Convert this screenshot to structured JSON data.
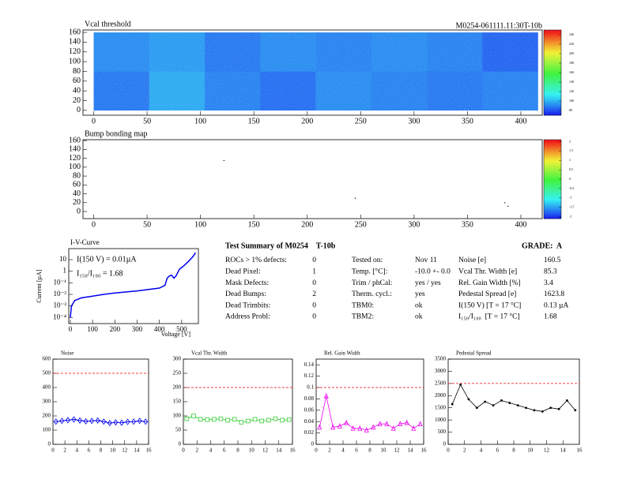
{
  "module_id": "M0254-061111.11:30T-10b",
  "chart_data": [
    {
      "type": "heatmap",
      "title": "Vcal threshold",
      "xlim": [
        -10,
        420
      ],
      "ylim": [
        -10,
        165
      ],
      "xticks": [
        0,
        50,
        100,
        150,
        200,
        250,
        300,
        350,
        400
      ],
      "yticks": [
        0,
        20,
        40,
        60,
        80,
        100,
        120,
        140,
        160
      ],
      "zlim": [
        70,
        250
      ],
      "zticks": [
        80,
        100,
        120,
        140,
        160,
        180,
        200,
        220,
        240
      ],
      "z": [
        [
          88,
          98,
          90,
          86,
          92,
          90,
          88,
          90
        ],
        [
          92,
          95,
          88,
          92,
          90,
          92,
          90,
          84
        ]
      ]
    },
    {
      "type": "scatter",
      "title": "Bump bonding map",
      "xlim": [
        -10,
        420
      ],
      "ylim": [
        -16,
        162
      ],
      "xticks": [
        0,
        50,
        100,
        150,
        200,
        250,
        300,
        350,
        400
      ],
      "yticks": [
        0,
        20,
        40,
        60,
        80,
        100,
        120,
        140,
        160
      ],
      "zlim": [
        -2.1,
        2.1
      ],
      "zticks": [
        -2,
        -1.5,
        -1,
        -0.5,
        0,
        0.5,
        1,
        1.5,
        2
      ],
      "x": [
        122,
        245,
        385,
        388
      ],
      "values": [
        115,
        30,
        20,
        12
      ],
      "color": "#000000"
    },
    {
      "type": "line",
      "title": "I-V-Curve",
      "xlabel": "Voltage [V]",
      "ylabel": "Current [µA]",
      "log_y": true,
      "color": "#0000ee",
      "xlim": [
        -7,
        575
      ],
      "ylim": [
        3e-05,
        90
      ],
      "xticks": [
        0,
        100,
        200,
        300,
        400,
        500
      ],
      "yticks": [
        {
          "value": 0.0001,
          "label": "10⁻⁴"
        },
        {
          "value": 0.001,
          "label": "10⁻³"
        },
        {
          "value": 0.01,
          "label": "10⁻²"
        },
        {
          "value": 0.1,
          "label": "10⁻¹"
        },
        1,
        10
      ],
      "annotations": [
        "I(150 V) = 0.01µA",
        "I₁₅₀/I₁₀₀ = 1.68"
      ],
      "x": [
        0,
        5,
        20,
        50,
        100,
        150,
        200,
        300,
        400,
        425,
        435,
        445,
        455,
        465,
        475,
        490,
        510,
        530,
        550,
        562
      ],
      "values": [
        0.0001,
        0.001,
        0.003,
        0.005,
        0.007,
        0.01,
        0.013,
        0.02,
        0.035,
        0.06,
        0.25,
        0.4,
        0.45,
        0.25,
        0.4,
        1.5,
        3,
        7,
        18,
        40
      ]
    },
    {
      "type": "line",
      "title": "Noise",
      "marker": "diamond",
      "color": "#0000ee",
      "threshold": 500,
      "xlim": [
        0,
        16
      ],
      "xticks": [
        0,
        2,
        4,
        6,
        8,
        10,
        12,
        14,
        16
      ],
      "ylim": [
        0,
        600
      ],
      "yticks": [
        0,
        100,
        200,
        300,
        400,
        500,
        600
      ],
      "values": [
        160,
        165,
        170,
        175,
        168,
        162,
        165,
        168,
        160,
        150,
        155,
        152,
        158,
        160,
        165,
        160
      ]
    },
    {
      "type": "line",
      "title": "Vcal Thr. Width",
      "marker": "square",
      "color": "#33cc33",
      "threshold": 200,
      "xlim": [
        0,
        16
      ],
      "xticks": [
        0,
        2,
        4,
        6,
        8,
        10,
        12,
        14,
        16
      ],
      "ylim": [
        0,
        300
      ],
      "yticks": [
        0,
        50,
        100,
        150,
        200,
        250,
        300
      ],
      "values": [
        90,
        100,
        88,
        87,
        88,
        90,
        85,
        88,
        78,
        82,
        88,
        82,
        85,
        90,
        85,
        87
      ]
    },
    {
      "type": "line",
      "title": "Rel. Gain Width",
      "marker": "triangle",
      "color": "#ee00ee",
      "threshold": 0.1,
      "xlim": [
        0,
        16
      ],
      "xticks": [
        0,
        2,
        4,
        6,
        8,
        10,
        12,
        14,
        16
      ],
      "ylim": [
        0,
        0.15
      ],
      "yticks": [
        0,
        0.02,
        0.04,
        0.06,
        0.08,
        0.1,
        0.12,
        0.14
      ],
      "values": [
        0.03,
        0.085,
        0.03,
        0.032,
        0.038,
        0.028,
        0.028,
        0.025,
        0.03,
        0.036,
        0.036,
        0.028,
        0.036,
        0.038,
        0.028,
        0.036
      ]
    },
    {
      "type": "line",
      "title": "Pedestal Spread",
      "marker": "dot",
      "color": "#000000",
      "threshold": 2500,
      "xlim": [
        0,
        16
      ],
      "xticks": [
        0,
        2,
        4,
        6,
        8,
        10,
        12,
        14,
        16
      ],
      "ylim": [
        0,
        3500
      ],
      "yticks": [
        0,
        500,
        1000,
        1500,
        2000,
        2500,
        3000,
        3500
      ],
      "values": [
        1650,
        2450,
        1850,
        1500,
        1750,
        1600,
        1800,
        1700,
        1600,
        1500,
        1400,
        1350,
        1500,
        1450,
        1800,
        1400
      ]
    }
  ],
  "summary": {
    "title": "Test Summary of M0254    T-10b",
    "grade": "GRADE:  A",
    "columns": [
      [
        [
          "ROCs > 1% defects:",
          "0"
        ],
        [
          "Dead Pixel:",
          "1"
        ],
        [
          "Mask Defects:",
          "0"
        ],
        [
          "Dead Bumps:",
          "2"
        ],
        [
          "Dead Trimbits:",
          "0"
        ],
        [
          "Address Probl:",
          "0"
        ]
      ],
      [
        [
          "Tested on:",
          "Nov 11"
        ],
        [
          "Temp. [°C]:",
          "-10.0 +- 0.0"
        ],
        [
          "Trim / phCal:",
          "yes / yes"
        ],
        [
          "Therm. cycl.:",
          "yes"
        ],
        [
          "TBM0:",
          "ok"
        ],
        [
          "TBM2:",
          "ok"
        ]
      ],
      [
        [
          "Noise [e]",
          "160.5"
        ],
        [
          "Vcal Thr. Width [e]",
          "85.3"
        ],
        [
          "Rel. Gain Width [%]",
          "3.4"
        ],
        [
          "Pedestal Spread [e]",
          "1623.8"
        ],
        [
          "I(150 V) [T = 17 °C]",
          "0.13 µA"
        ],
        [
          "I₁₅₀/I₁₀₀  [T = 17 °C]",
          "1.68"
        ]
      ]
    ]
  }
}
